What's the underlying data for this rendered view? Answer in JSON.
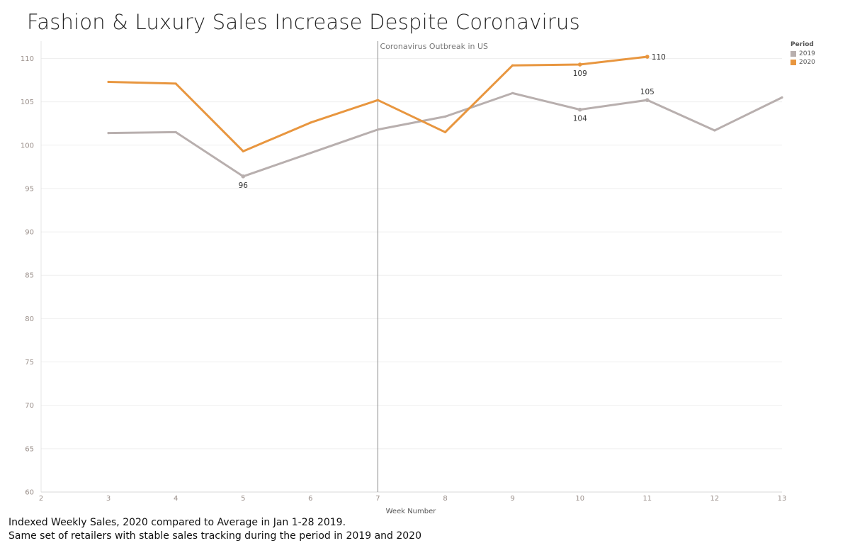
{
  "title": "Fashion & Luxury Sales Increase Despite Coronavirus",
  "caption": {
    "line1": "Indexed Weekly Sales, 2020 compared to Average in Jan 1-28 2019.",
    "line2": "Same set of retailers with stable sales tracking during the period in 2019 and 2020"
  },
  "chart_data": {
    "type": "line",
    "xlabel": "Week Number",
    "ylabel": "",
    "xlim": [
      2,
      13
    ],
    "ylim": [
      60,
      112
    ],
    "x_ticks": [
      2,
      3,
      4,
      5,
      6,
      7,
      8,
      9,
      10,
      11,
      12,
      13
    ],
    "y_ticks": [
      60,
      65,
      70,
      75,
      80,
      85,
      90,
      95,
      100,
      105,
      110
    ],
    "grid": true,
    "legend": {
      "title": "Period",
      "position": "top-right"
    },
    "series": [
      {
        "name": "2019",
        "color": "#b8afae",
        "x": [
          3,
          4,
          5,
          6,
          7,
          8,
          9,
          10,
          11,
          12,
          13
        ],
        "y": [
          101.4,
          101.5,
          96.4,
          99.1,
          101.8,
          103.3,
          106.0,
          104.1,
          105.2,
          101.7,
          105.5
        ]
      },
      {
        "name": "2020",
        "color": "#e8963f",
        "x": [
          3,
          4,
          5,
          6,
          7,
          8,
          9,
          10,
          11
        ],
        "y": [
          107.3,
          107.1,
          99.3,
          102.6,
          105.2,
          101.5,
          109.2,
          109.3,
          110.2
        ]
      }
    ],
    "annotations": [
      {
        "text": "96",
        "series": "2019",
        "x": 5,
        "y": 96.4,
        "place": "below"
      },
      {
        "text": "104",
        "series": "2019",
        "x": 10,
        "y": 104.1,
        "place": "below"
      },
      {
        "text": "105",
        "series": "2019",
        "x": 11,
        "y": 105.2,
        "place": "above"
      },
      {
        "text": "109",
        "series": "2020",
        "x": 10,
        "y": 109.3,
        "place": "below"
      },
      {
        "text": "110",
        "series": "2020",
        "x": 11,
        "y": 110.2,
        "place": "right"
      }
    ],
    "reference_line": {
      "x": 7,
      "label": "Coronavirus Outbreak in US",
      "color": "#888888"
    }
  }
}
